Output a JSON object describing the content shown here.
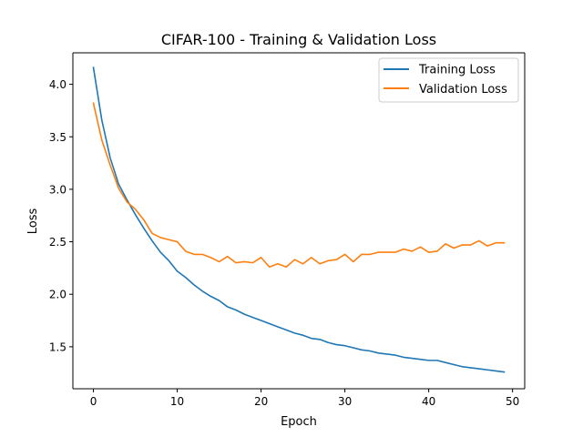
{
  "chart_data": {
    "type": "line",
    "title": "CIFAR-100 - Training & Validation Loss",
    "xlabel": "Epoch",
    "ylabel": "Loss",
    "xlim": [
      -2.45,
      51.45
    ],
    "ylim": [
      1.1,
      4.3
    ],
    "xticks": [
      0,
      10,
      20,
      30,
      40,
      50
    ],
    "yticks": [
      1.5,
      2.0,
      2.5,
      3.0,
      3.5,
      4.0
    ],
    "grid": false,
    "legend_position": "top-right",
    "x": [
      0,
      1,
      2,
      3,
      4,
      5,
      6,
      7,
      8,
      9,
      10,
      11,
      12,
      13,
      14,
      15,
      16,
      17,
      18,
      19,
      20,
      21,
      22,
      23,
      24,
      25,
      26,
      27,
      28,
      29,
      30,
      31,
      32,
      33,
      34,
      35,
      36,
      37,
      38,
      39,
      40,
      41,
      42,
      43,
      44,
      45,
      46,
      47,
      48,
      49
    ],
    "series": [
      {
        "name": "Training Loss",
        "color": "#1f77b4",
        "values": [
          4.16,
          3.66,
          3.3,
          3.05,
          2.9,
          2.76,
          2.63,
          2.51,
          2.4,
          2.32,
          2.22,
          2.16,
          2.09,
          2.03,
          1.98,
          1.94,
          1.88,
          1.85,
          1.81,
          1.78,
          1.75,
          1.72,
          1.69,
          1.66,
          1.63,
          1.61,
          1.58,
          1.57,
          1.54,
          1.52,
          1.51,
          1.49,
          1.47,
          1.46,
          1.44,
          1.43,
          1.42,
          1.4,
          1.39,
          1.38,
          1.37,
          1.37,
          1.35,
          1.33,
          1.31,
          1.3,
          1.29,
          1.28,
          1.27,
          1.26
        ]
      },
      {
        "name": "Validation Loss",
        "color": "#ff7f0e",
        "values": [
          3.82,
          3.47,
          3.23,
          3.01,
          2.88,
          2.81,
          2.71,
          2.58,
          2.54,
          2.52,
          2.5,
          2.41,
          2.38,
          2.38,
          2.35,
          2.31,
          2.36,
          2.3,
          2.31,
          2.3,
          2.35,
          2.26,
          2.29,
          2.26,
          2.33,
          2.29,
          2.35,
          2.29,
          2.32,
          2.33,
          2.38,
          2.31,
          2.38,
          2.38,
          2.4,
          2.4,
          2.4,
          2.43,
          2.41,
          2.45,
          2.4,
          2.41,
          2.48,
          2.44,
          2.47,
          2.47,
          2.51,
          2.46,
          2.49,
          2.49
        ]
      }
    ]
  }
}
